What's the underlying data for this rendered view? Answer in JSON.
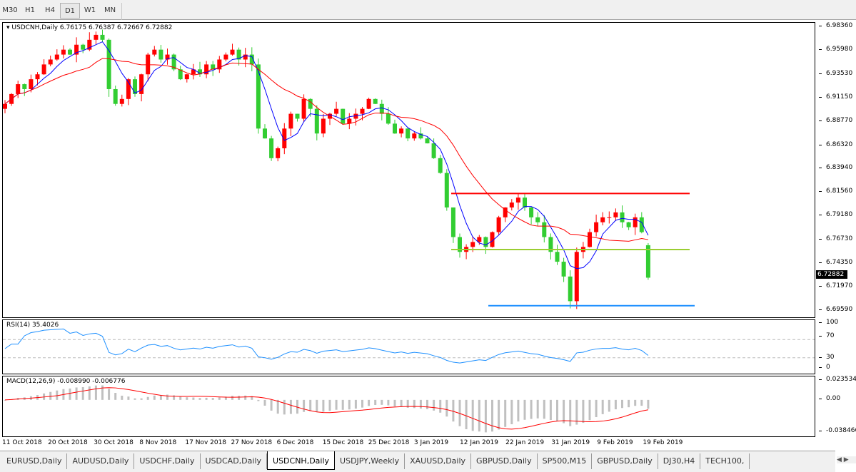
{
  "toolbar": {
    "timeframes": [
      "M30",
      "H1",
      "H4",
      "D1",
      "W1",
      "MN"
    ],
    "active": "D1"
  },
  "main": {
    "legend": "USDCNH,Daily  6.76175 6.76387 6.72667 6.72882",
    "price_tag": "6.72882",
    "price_ticks": [
      "6.98360",
      "6.95980",
      "6.93530",
      "6.91150",
      "6.88770",
      "6.86320",
      "6.83940",
      "6.81560",
      "6.79180",
      "6.76730",
      "6.74350",
      "6.71970",
      "6.69590"
    ]
  },
  "rsi": {
    "legend": "RSI(14) 35.4026",
    "ticks": [
      "100",
      "70",
      "30",
      "0"
    ]
  },
  "macd": {
    "legend": "MACD(12,26,9) -0.008990 -0.006776",
    "ticks": [
      "0.023534",
      "0.00",
      "-0.038466"
    ]
  },
  "xaxis": {
    "labels": [
      "11 Oct 2018",
      "20 Oct 2018",
      "30 Oct 2018",
      "8 Nov 2018",
      "17 Nov 2018",
      "27 Nov 2018",
      "6 Dec 2018",
      "15 Dec 2018",
      "25 Dec 2018",
      "3 Jan 2019",
      "12 Jan 2019",
      "22 Jan 2019",
      "31 Jan 2019",
      "9 Feb 2019",
      "19 Feb 2019"
    ]
  },
  "tabs": [
    "EURUSD,Daily",
    "AUDUSD,Daily",
    "USDCHF,Daily",
    "USDCAD,Daily",
    "USDCNH,Daily",
    "USDJPY,Weekly",
    "XAUUSD,Daily",
    "GBPUSD,Daily",
    "SP500,M15",
    "GBPUSD,Daily",
    "DJ30,H4",
    "TECH100,"
  ],
  "active_tab": "USDCNH,Daily",
  "colors": {
    "bull": "#ff0000",
    "bear": "#32cd32",
    "ma_fast": "#0000ff",
    "ma_slow": "#ff0000",
    "rsi": "#1e90ff",
    "macd_hist": "#c0c0c0",
    "macd_signal": "#ff0000"
  },
  "chart_data": {
    "type": "candlestick",
    "symbol": "USDCNH",
    "timeframe": "Daily",
    "ylim": [
      6.6959,
      6.9836
    ],
    "last": {
      "open": 6.76175,
      "high": 6.76387,
      "low": 6.72667,
      "close": 6.72882
    },
    "closes": [
      6.905,
      6.915,
      6.925,
      6.92,
      6.93,
      6.935,
      6.945,
      6.95,
      6.955,
      6.96,
      6.955,
      6.965,
      6.96,
      6.97,
      6.975,
      6.97,
      6.92,
      6.905,
      6.91,
      6.93,
      6.915,
      6.935,
      6.955,
      6.96,
      6.95,
      6.955,
      6.94,
      6.93,
      6.935,
      6.94,
      6.935,
      6.945,
      6.94,
      6.95,
      6.955,
      6.96,
      6.95,
      6.955,
      6.945,
      6.88,
      6.87,
      6.85,
      6.86,
      6.88,
      6.895,
      6.89,
      6.91,
      6.9,
      6.875,
      6.89,
      6.895,
      6.9,
      6.885,
      6.89,
      6.895,
      6.9,
      6.91,
      6.905,
      6.895,
      6.885,
      6.875,
      6.88,
      6.87,
      6.875,
      6.87,
      6.865,
      6.85,
      6.835,
      6.8,
      6.77,
      6.755,
      6.76,
      6.765,
      6.77,
      6.76,
      6.775,
      6.79,
      6.8,
      6.805,
      6.81,
      6.8,
      6.79,
      6.785,
      6.77,
      6.755,
      6.745,
      6.73,
      6.705,
      6.755,
      6.76,
      6.775,
      6.785,
      6.79,
      6.79,
      6.795,
      6.785,
      6.78,
      6.79,
      6.775,
      6.72882
    ],
    "hlines": [
      {
        "price": 6.8142,
        "color": "#ff0000"
      },
      {
        "price": 6.7573,
        "color": "#9acd32"
      },
      {
        "price": 6.7004,
        "color": "#1e90ff"
      }
    ],
    "rsi_levels": [
      70,
      30
    ],
    "macd_range": [
      -0.038466,
      0.023534
    ]
  }
}
